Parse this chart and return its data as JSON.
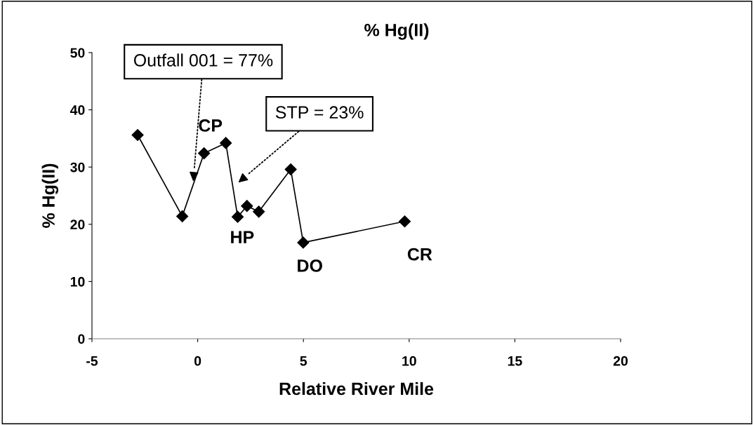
{
  "chart_data": {
    "type": "line",
    "title": "% Hg(II)",
    "xlabel": "Relative River Mile",
    "ylabel": "% Hg(II)",
    "x": [
      -2.84,
      -0.73,
      0.3,
      1.33,
      1.89,
      2.33,
      2.89,
      4.4,
      4.99,
      9.79
    ],
    "series": [
      {
        "color": "#000000",
        "values": [
          35.6,
          21.4,
          32.4,
          34.2,
          21.3,
          23.2,
          22.2,
          29.6,
          16.8,
          20.5
        ]
      }
    ],
    "marker": "diamond",
    "line_style": "solid",
    "grid": false,
    "legend": false,
    "xlim": [
      -5,
      20
    ],
    "xticks": [
      -5,
      0,
      5,
      10,
      15,
      20
    ],
    "ylim": [
      0,
      50
    ],
    "yticks": [
      0,
      10,
      20,
      30,
      40,
      50
    ],
    "annotations": [
      "CP",
      "HP",
      "DO",
      "CR",
      "Outfall 001 = 77%",
      "STP = 23%"
    ]
  }
}
